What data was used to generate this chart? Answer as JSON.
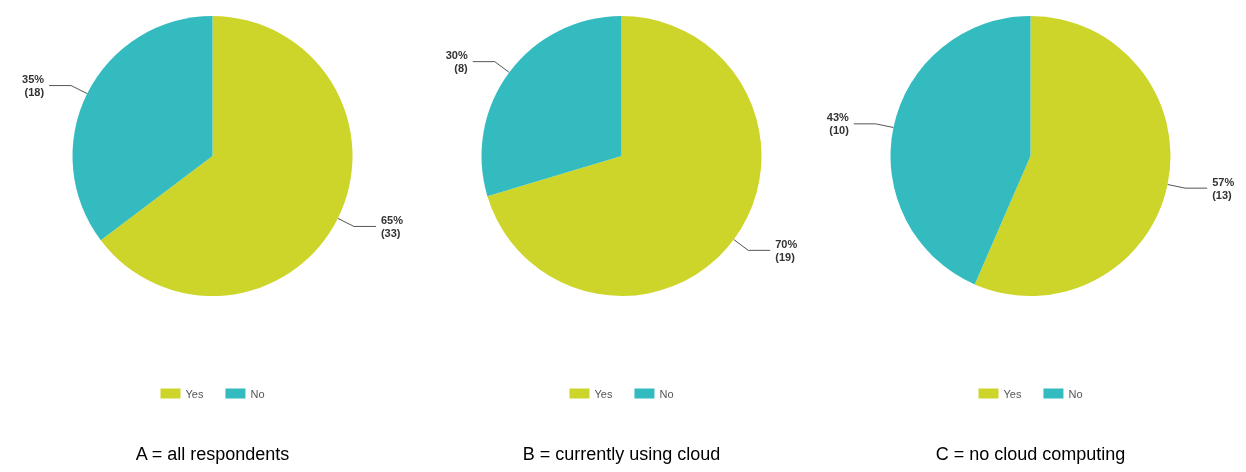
{
  "chart_data": [
    {
      "type": "pie",
      "title": "A = all respondents",
      "categories": [
        "Yes",
        "No"
      ],
      "values": [
        33,
        18
      ],
      "colors": [
        "#cdd52a",
        "#33bbbf"
      ],
      "value_labels": [
        "65%\n(33)",
        "35%\n(18)"
      ],
      "legend": "bottom"
    },
    {
      "type": "pie",
      "title": "B = currently using cloud",
      "categories": [
        "Yes",
        "No"
      ],
      "values": [
        19,
        8
      ],
      "colors": [
        "#cdd52a",
        "#33bbbf"
      ],
      "value_labels": [
        "70%\n(19)",
        "30%\n(8)"
      ],
      "legend": "bottom"
    },
    {
      "type": "pie",
      "title": "C = no cloud computing",
      "categories": [
        "Yes",
        "No"
      ],
      "values": [
        13,
        10
      ],
      "colors": [
        "#cdd52a",
        "#33bbbf"
      ],
      "value_labels": [
        "57%\n(13)",
        "43%\n(10)"
      ],
      "legend": "bottom"
    }
  ]
}
